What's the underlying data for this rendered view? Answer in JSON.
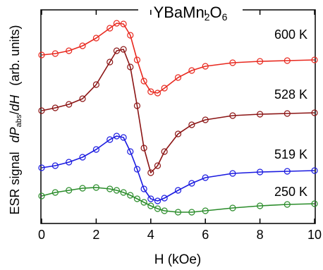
{
  "chart_data": {
    "type": "line",
    "title": [
      "YBaMn",
      "2",
      "O",
      "6"
    ],
    "xlabel": "H (kOe)",
    "ylabel": [
      "ESR signal",
      "dP",
      "abs",
      "/",
      "dH",
      "(arb. units)"
    ],
    "x": [
      0,
      0.5,
      1,
      1.5,
      2,
      2.5,
      2.75,
      3,
      3.25,
      3.5,
      3.75,
      4,
      4.25,
      4.5,
      5,
      5.5,
      6,
      7,
      8,
      9,
      10
    ],
    "xlim": [
      0,
      10
    ],
    "xticks": [
      0,
      2,
      4,
      6,
      8,
      10
    ],
    "ylim": [
      0,
      303
    ],
    "series": [
      {
        "name": "600 K",
        "color": "#e8281e",
        "values": [
          239,
          241,
          245,
          252,
          263,
          277,
          284,
          283,
          267,
          232,
          202,
          187,
          185,
          192,
          207,
          217,
          223,
          228,
          230,
          231,
          232
        ]
      },
      {
        "name": "528 K",
        "color": "#8b1414",
        "values": [
          160,
          164,
          169,
          177,
          197,
          229,
          245,
          247,
          222,
          167,
          107,
          72,
          82,
          102,
          127,
          140,
          147,
          153,
          155,
          156,
          157
        ]
      },
      {
        "name": "519 K",
        "color": "#1a1ae0",
        "values": [
          79,
          82,
          87,
          94,
          105,
          119,
          124,
          122,
          102,
          77,
          49,
          35,
          32,
          36,
          47,
          57,
          65,
          71,
          73,
          74,
          75
        ]
      },
      {
        "name": "250 K",
        "color": "#2a8c2a",
        "values": [
          39,
          44,
          47,
          50,
          51,
          49,
          47,
          44,
          40,
          35,
          30,
          25,
          21,
          18,
          16,
          16,
          18,
          22,
          25,
          27,
          28
        ]
      }
    ]
  }
}
